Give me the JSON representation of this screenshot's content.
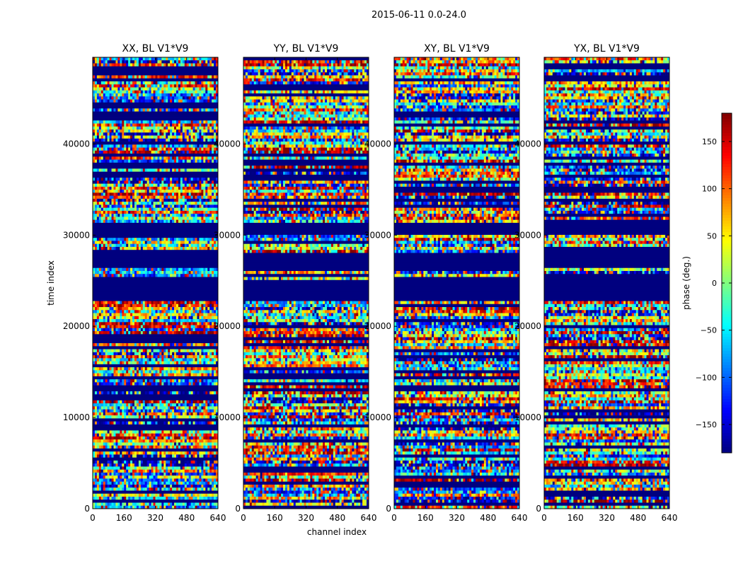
{
  "suptitle": "2015-06-11 0.0-24.0",
  "chart_data": {
    "type": "heatmap",
    "xlabel": "channel index",
    "ylabel": "time index",
    "xlim": [
      0,
      640
    ],
    "ylim": [
      0,
      49500
    ],
    "xticks": [
      "0",
      "160",
      "320",
      "480",
      "640"
    ],
    "yticks": [
      "0",
      "10000",
      "20000",
      "30000",
      "40000"
    ],
    "ytick_values": [
      0,
      10000,
      20000,
      30000,
      40000
    ],
    "panels": [
      {
        "title": "XX, BL V1*V9"
      },
      {
        "title": "YY, BL V1*V9"
      },
      {
        "title": "XY, BL V1*V9"
      },
      {
        "title": "YX, BL V1*V9"
      }
    ],
    "colorbar": {
      "label": "phase (deg.)",
      "range": [
        -180,
        180
      ],
      "ticks": [
        "150",
        "100",
        "50",
        "0",
        "−50",
        "−100",
        "−150"
      ],
      "tick_values": [
        150,
        100,
        50,
        0,
        -50,
        -100,
        -150
      ],
      "colormap": "jet"
    },
    "flagged_time_bands": [
      [
        22800,
        25000
      ],
      [
        26500,
        28000
      ],
      [
        30000,
        31500
      ],
      [
        37500,
        38000
      ]
    ]
  }
}
